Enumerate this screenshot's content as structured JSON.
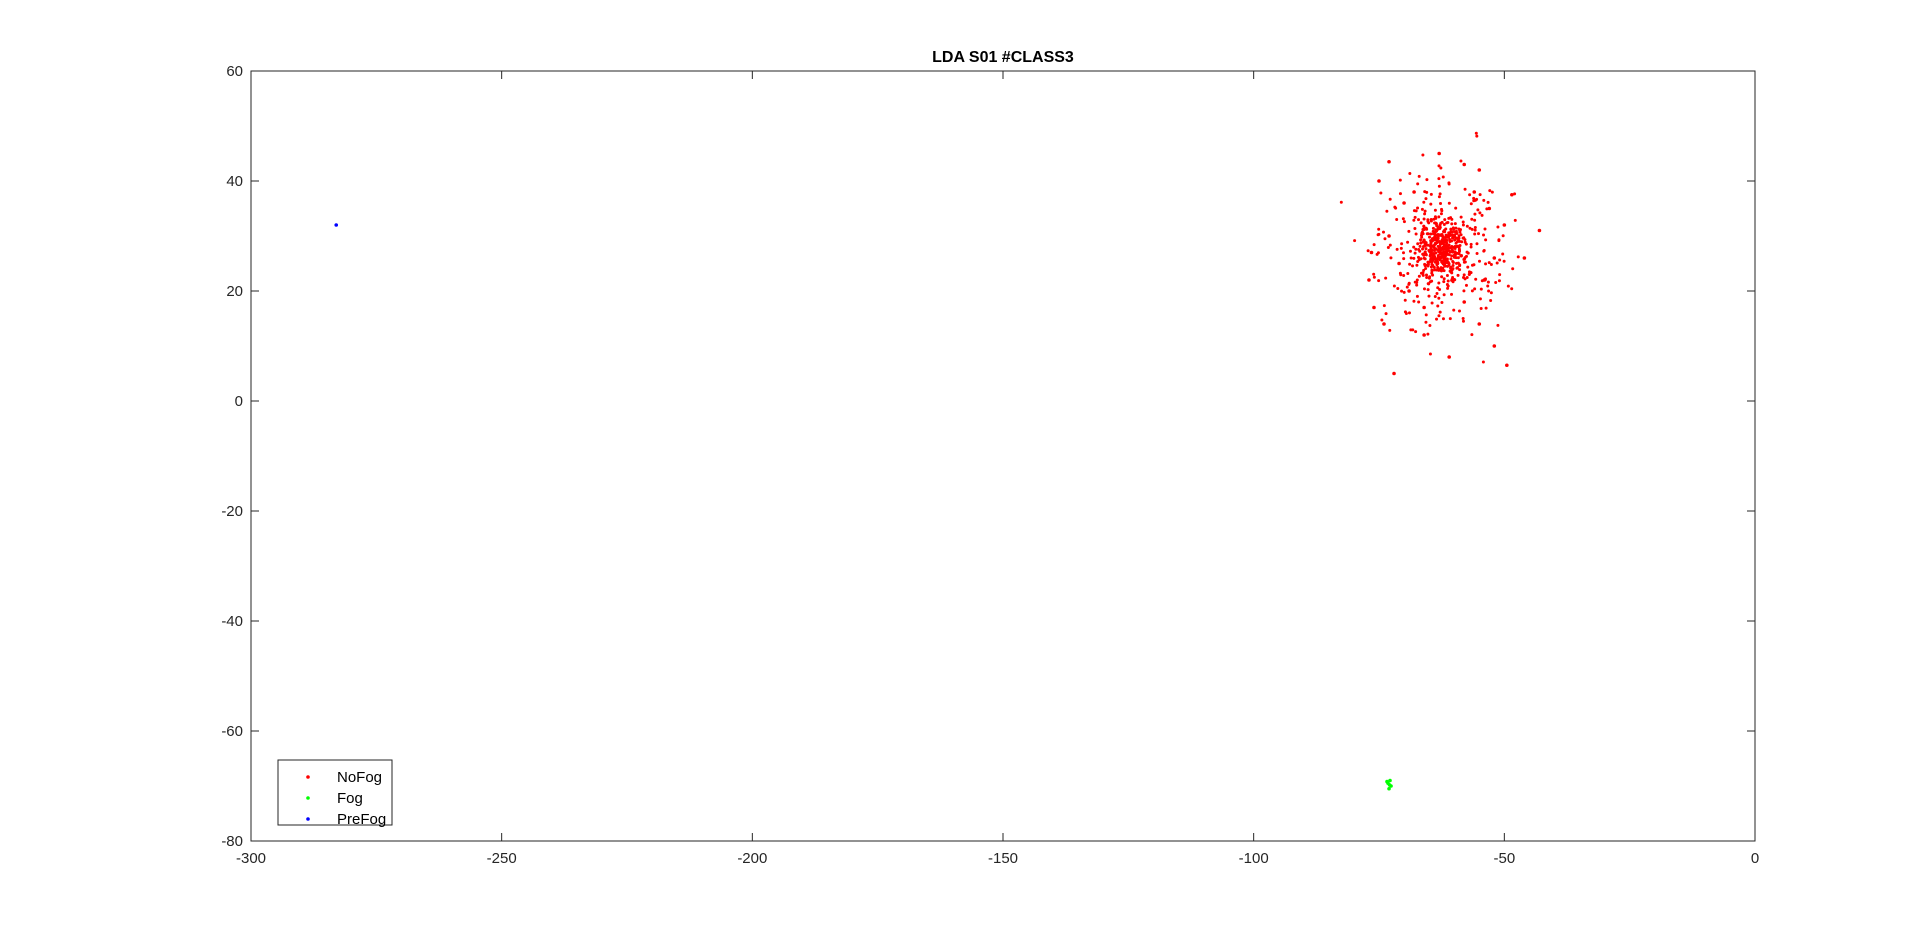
{
  "chart_data": {
    "type": "scatter",
    "title": "LDA S01 #CLASS3",
    "xlabel": "",
    "ylabel": "",
    "xlim": [
      -300,
      0
    ],
    "ylim": [
      -80,
      60
    ],
    "xticks": [
      -300,
      -250,
      -200,
      -150,
      -100,
      -50,
      0
    ],
    "yticks": [
      -80,
      -60,
      -40,
      -20,
      0,
      20,
      40,
      60
    ],
    "grid": false,
    "legend_placement": "bottom-left",
    "series": [
      {
        "name": "NoFog",
        "color": "#ff0000",
        "cluster_center": [
          -62.5,
          27.5
        ],
        "approx_count": 700,
        "points": [
          [
            -72,
            5
          ],
          [
            -49.5,
            6.5
          ],
          [
            -61,
            8
          ],
          [
            -43,
            31
          ],
          [
            -46,
            26
          ],
          [
            -76.5,
            27
          ],
          [
            -75,
            40
          ],
          [
            -73,
            43.5
          ],
          [
            -63,
            45
          ],
          [
            -55,
            42
          ],
          [
            -58,
            43
          ],
          [
            -48.5,
            37.5
          ],
          [
            -50,
            32
          ],
          [
            -77,
            22
          ],
          [
            -76,
            17
          ],
          [
            -74,
            14
          ],
          [
            -55,
            14
          ],
          [
            -52,
            10
          ],
          [
            -66,
            12
          ],
          [
            -70,
            36
          ],
          [
            -68,
            38
          ],
          [
            -56,
            38
          ],
          [
            -53,
            35
          ],
          [
            -73,
            30
          ],
          [
            -71,
            25
          ],
          [
            -69,
            20
          ],
          [
            -66,
            17
          ],
          [
            -58,
            18
          ],
          [
            -54,
            22
          ],
          [
            -52,
            26
          ]
        ]
      },
      {
        "name": "Fog",
        "color": "#00ff00",
        "points": [
          [
            -72.8,
            -69
          ],
          [
            -73.2,
            -69.5
          ],
          [
            -72.6,
            -70
          ],
          [
            -73,
            -70.5
          ],
          [
            -72.9,
            -69.8
          ],
          [
            -73.4,
            -69.2
          ]
        ]
      },
      {
        "name": "PreFog",
        "color": "#0000ff",
        "points": [
          [
            -283,
            32
          ]
        ]
      }
    ]
  }
}
